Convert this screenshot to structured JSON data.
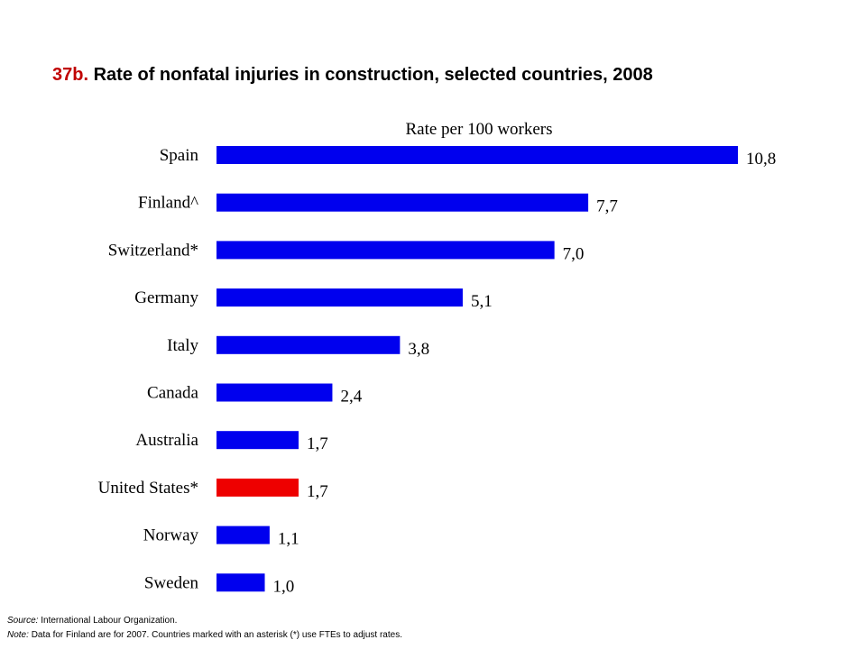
{
  "title_prefix": "37b.",
  "title_text": "Rate of nonfatal injuries in construction, selected countries, 2008",
  "colors": {
    "bar_default": "#0000ee",
    "bar_highlight": "#ee0000",
    "title_prefix": "#c00000"
  },
  "chart_data": {
    "type": "bar",
    "orientation": "horizontal",
    "axis_title": "Rate per 100 workers",
    "categories": [
      "Spain",
      "Finland^",
      "Switzerland*",
      "Germany",
      "Italy",
      "Canada",
      "Australia",
      "United States*",
      "Norway",
      "Sweden"
    ],
    "values": [
      10.8,
      7.7,
      7.0,
      5.1,
      3.8,
      2.4,
      1.7,
      1.7,
      1.1,
      1.0
    ],
    "value_labels": [
      "10,8",
      "7,7",
      "7,0",
      "5,1",
      "3,8",
      "2,4",
      "1,7",
      "1,7",
      "1,1",
      "1,0"
    ],
    "highlight": [
      "United States*"
    ],
    "xlim": [
      0,
      10.8
    ],
    "grid": false,
    "legend": "none"
  },
  "footer": {
    "source_label": "Source:",
    "source_text": "International Labour Organization.",
    "note_label": "Note:",
    "note_text": "Data for Finland are for 2007. Countries marked with an asterisk (*) use FTEs to adjust rates."
  }
}
